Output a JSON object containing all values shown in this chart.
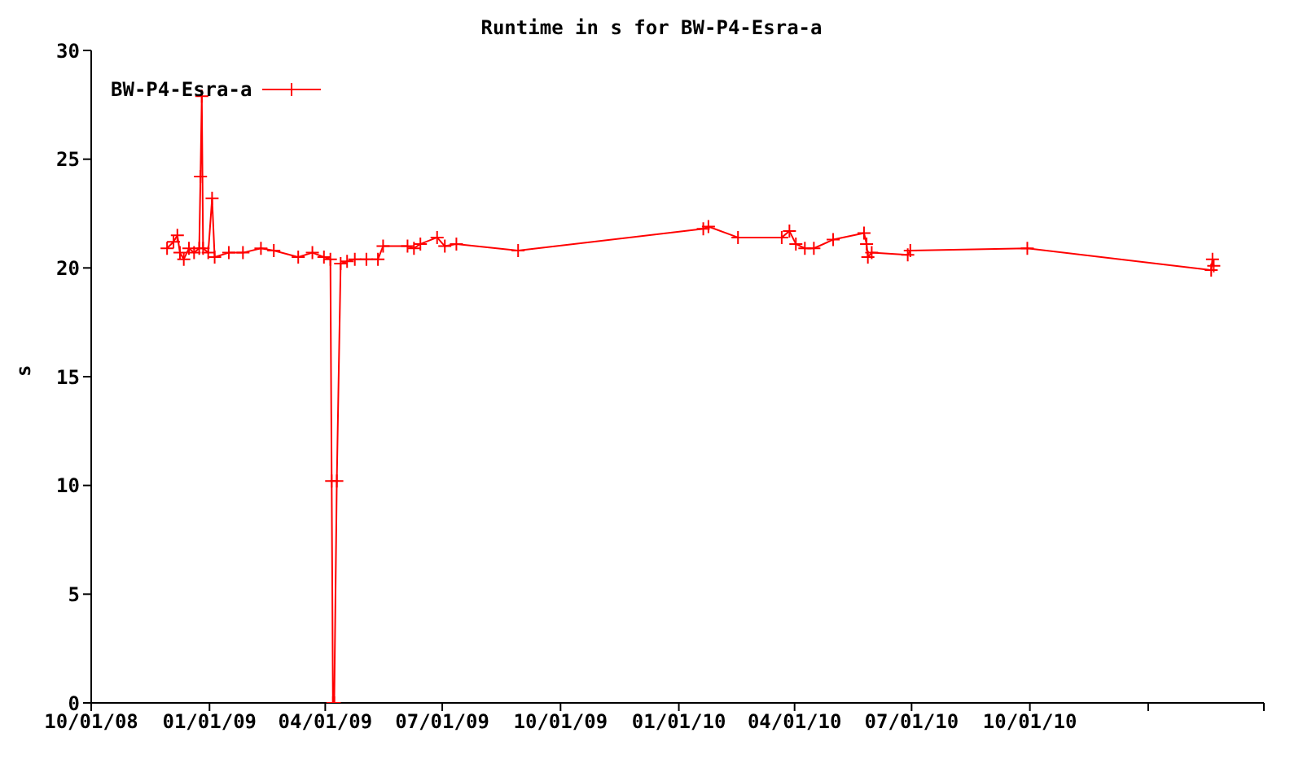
{
  "chart_data": {
    "type": "line",
    "title": "Runtime in s for BW-P4-Esra-a",
    "ylabel": "s",
    "xlim": [
      "2008-10-01",
      "2011-04-01"
    ],
    "xticks": [
      {
        "value": "2008-10-01",
        "label": "10/01/08"
      },
      {
        "value": "2009-01-01",
        "label": "01/01/09"
      },
      {
        "value": "2009-04-01",
        "label": "04/01/09"
      },
      {
        "value": "2009-07-01",
        "label": "07/01/09"
      },
      {
        "value": "2009-10-01",
        "label": "10/01/09"
      },
      {
        "value": "2010-01-01",
        "label": "01/01/10"
      },
      {
        "value": "2010-04-01",
        "label": "04/01/10"
      },
      {
        "value": "2010-07-01",
        "label": "07/01/10"
      },
      {
        "value": "2010-10-01",
        "label": "10/01/10"
      },
      {
        "value": "2011-01-01",
        "label": null
      },
      {
        "value": "2011-04-01",
        "label": null
      }
    ],
    "ylim": [
      0,
      30
    ],
    "yticks": [
      0,
      5,
      10,
      15,
      20,
      25,
      30
    ],
    "grid": false,
    "legend": "top left",
    "marker": "cross",
    "line_style": "solid",
    "x": [
      "2008-11-29",
      "2008-12-04",
      "2008-12-07",
      "2008-12-09",
      "2008-12-12",
      "2008-12-16",
      "2008-12-20",
      "2008-12-24",
      "2008-12-25",
      "2008-12-26",
      "2008-12-27",
      "2008-12-31",
      "2009-01-03",
      "2009-01-05",
      "2009-01-16",
      "2009-01-27",
      "2009-02-10",
      "2009-02-20",
      "2009-03-11",
      "2009-03-22",
      "2009-03-31",
      "2009-04-05",
      "2009-04-06",
      "2009-04-07",
      "2009-04-08",
      "2009-04-10",
      "2009-04-13",
      "2009-04-18",
      "2009-04-24",
      "2009-05-03",
      "2009-05-12",
      "2009-05-16",
      "2009-06-04",
      "2009-06-09",
      "2009-06-14",
      "2009-06-27",
      "2009-07-03",
      "2009-07-12",
      "2009-08-29",
      "2010-01-20",
      "2010-01-24",
      "2010-02-16",
      "2010-03-22",
      "2010-03-28",
      "2010-04-02",
      "2010-04-09",
      "2010-04-16",
      "2010-05-01",
      "2010-05-25",
      "2010-05-27",
      "2010-05-28",
      "2010-05-31",
      "2010-06-28",
      "2010-06-30",
      "2010-09-29",
      "2011-02-19",
      "2011-02-20",
      "2011-02-21"
    ],
    "series": [
      {
        "name": "BW-P4-Esra-a",
        "color": "#ff0000",
        "values": [
          20.9,
          21.2,
          21.5,
          20.7,
          20.4,
          20.9,
          20.7,
          20.9,
          24.2,
          27.9,
          20.9,
          20.7,
          23.2,
          20.5,
          20.7,
          20.7,
          20.9,
          20.8,
          20.5,
          20.7,
          20.5,
          20.4,
          10.2,
          0,
          0,
          10.2,
          20.2,
          20.3,
          20.4,
          20.4,
          20.4,
          21.0,
          21.0,
          20.9,
          21.1,
          21.4,
          21.0,
          21.1,
          20.8,
          21.8,
          21.9,
          21.4,
          21.4,
          21.7,
          21.1,
          20.9,
          20.9,
          21.3,
          21.6,
          21.1,
          20.5,
          20.7,
          20.6,
          20.8,
          20.9,
          19.9,
          20.4,
          20.1
        ]
      }
    ]
  }
}
